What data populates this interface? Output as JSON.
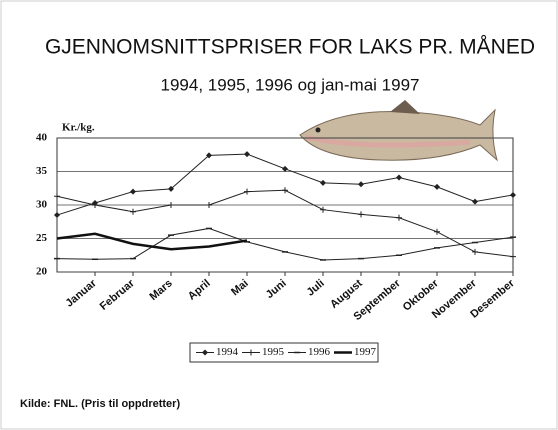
{
  "chart_data": {
    "type": "line",
    "title": "GJENNOMSNITTSPRISER FOR LAKS PR. MÅNED",
    "subtitle": "1994, 1995, 1996 og jan-mai 1997",
    "y_label": "Kr./kg.",
    "categories": [
      null,
      "Januar",
      "Februar",
      "Mars",
      "April",
      "Mai",
      "Juni",
      "Juli",
      "August",
      "September",
      "Oktober",
      "November",
      "Desember"
    ],
    "series": [
      {
        "name": "1994",
        "color": "#222222",
        "marker": "diamond",
        "line_width": 1,
        "values": [
          28.5,
          30.3,
          32.0,
          32.4,
          37.4,
          37.6,
          35.4,
          33.3,
          33.1,
          34.1,
          32.7,
          30.5,
          31.5
        ]
      },
      {
        "name": "1995",
        "color": "#222222",
        "marker": "plus",
        "line_width": 1,
        "values": [
          31.3,
          30.0,
          29.0,
          30.0,
          30.0,
          32.0,
          32.2,
          29.3,
          28.6,
          28.1,
          26.0,
          23.0,
          22.3
        ]
      },
      {
        "name": "1996",
        "color": "#222222",
        "marker": "dash",
        "line_width": 1,
        "values": [
          22.0,
          21.9,
          22.0,
          25.5,
          26.5,
          24.5,
          23.0,
          21.8,
          22.0,
          22.5,
          23.6,
          24.4,
          25.2
        ]
      },
      {
        "name": "1997",
        "color": "#111111",
        "marker": "none",
        "line_width": 2.5,
        "values": [
          25.0,
          25.7,
          24.2,
          23.4,
          23.8,
          24.7,
          null,
          null,
          null,
          null,
          null,
          null,
          null
        ]
      }
    ],
    "ylim": [
      20,
      40
    ],
    "yticks": [
      20,
      25,
      30,
      35,
      40
    ],
    "grid": true,
    "source": "Kilde: FNL. (Pris til oppdretter)"
  }
}
